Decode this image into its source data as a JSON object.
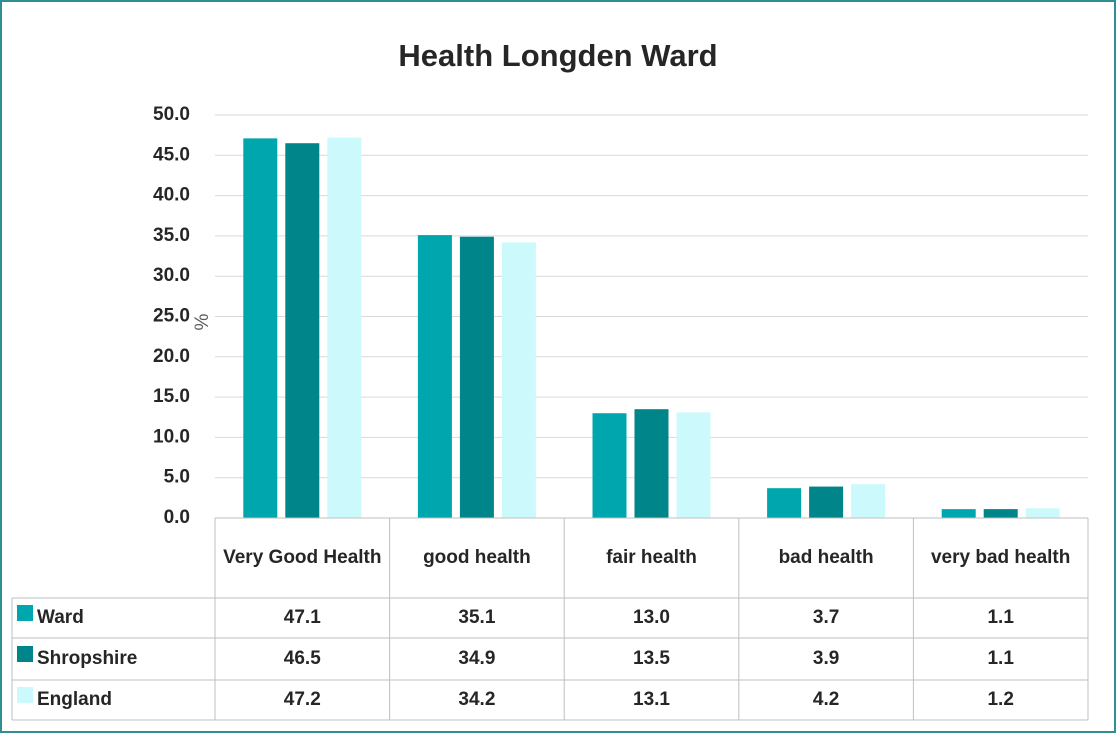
{
  "chart_data": {
    "type": "bar",
    "title": "Health Longden Ward",
    "y_label": "%",
    "categories": [
      "Very Good Health",
      "good health",
      "fair health",
      "bad health",
      "very bad health"
    ],
    "series": [
      {
        "name": "Ward",
        "color": "#00a6ad",
        "values": [
          47.1,
          35.1,
          13.0,
          3.7,
          1.1
        ],
        "value_labels": [
          "47.1",
          "35.1",
          "13.0",
          "3.7",
          "1.1"
        ]
      },
      {
        "name": "Shropshire",
        "color": "#00858a",
        "values": [
          46.5,
          34.9,
          13.5,
          3.9,
          1.1
        ],
        "value_labels": [
          "46.5",
          "34.9",
          "13.5",
          "3.9",
          "1.1"
        ]
      },
      {
        "name": "England",
        "color": "#ccf9fb",
        "values": [
          47.2,
          34.2,
          13.1,
          4.2,
          1.2
        ],
        "value_labels": [
          "47.2",
          "34.2",
          "13.1",
          "4.2",
          "1.2"
        ]
      }
    ],
    "ylim": [
      0,
      50
    ],
    "yticks": [
      {
        "value": 0,
        "label": "0.0"
      },
      {
        "value": 5,
        "label": "5.0"
      },
      {
        "value": 10,
        "label": "10.0"
      },
      {
        "value": 15,
        "label": "15.0"
      },
      {
        "value": 20,
        "label": "20.0"
      },
      {
        "value": 25,
        "label": "25.0"
      },
      {
        "value": 30,
        "label": "30.0"
      },
      {
        "value": 35,
        "label": "35.0"
      },
      {
        "value": 40,
        "label": "40.0"
      },
      {
        "value": 45,
        "label": "45.0"
      },
      {
        "value": 50,
        "label": "50.0"
      }
    ],
    "grid": true
  }
}
